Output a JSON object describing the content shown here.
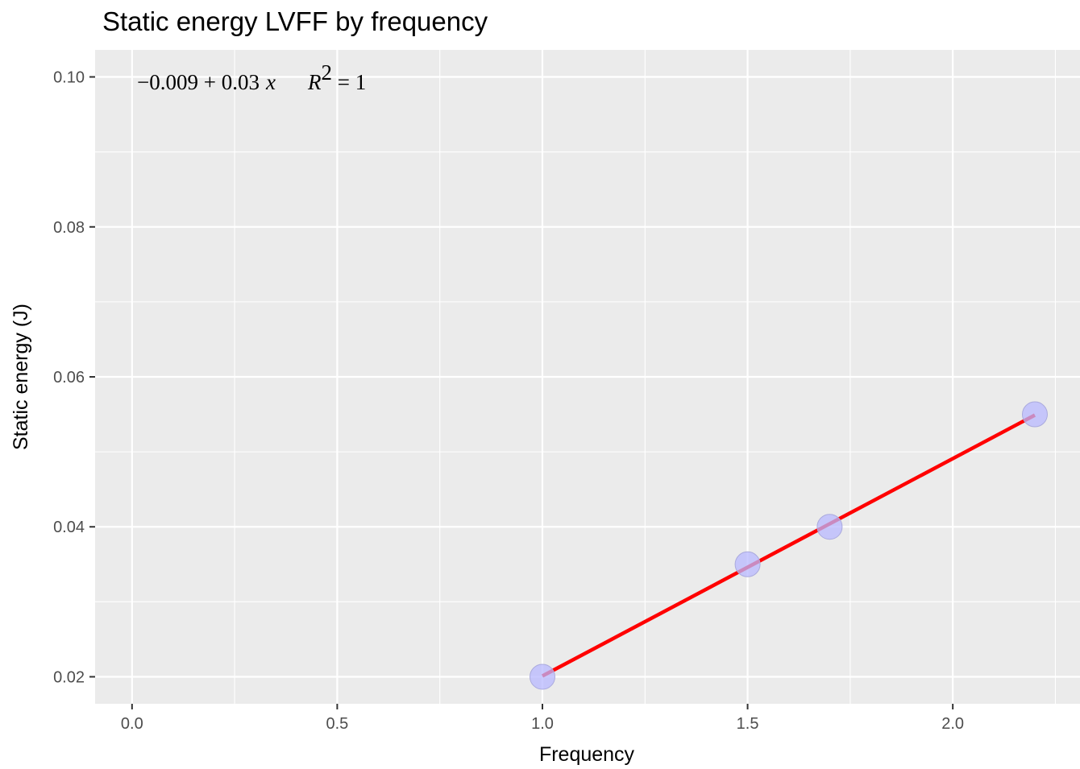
{
  "chart_data": {
    "type": "scatter",
    "title": "Static energy LVFF by frequency",
    "xlabel": "Frequency",
    "ylabel": "Static energy (J)",
    "xlim": [
      -0.09,
      2.31
    ],
    "ylim": [
      0.0164,
      0.1036
    ],
    "x_major_ticks": [
      0.0,
      0.5,
      1.0,
      1.5,
      2.0
    ],
    "x_tick_labels": [
      "0.0",
      "0.5",
      "1.0",
      "1.5",
      "2.0"
    ],
    "x_minor_ticks": [
      0.25,
      0.75,
      1.25,
      1.75,
      2.25
    ],
    "y_major_ticks": [
      0.02,
      0.04,
      0.06,
      0.08,
      0.1
    ],
    "y_tick_labels": [
      "0.02",
      "0.04",
      "0.06",
      "0.08",
      "0.10"
    ],
    "y_minor_ticks": [
      0.03,
      0.05,
      0.07,
      0.09
    ],
    "grid": true,
    "background": "#ebebeb",
    "points": [
      {
        "x": 1.0,
        "y": 0.02
      },
      {
        "x": 1.5,
        "y": 0.035
      },
      {
        "x": 1.7,
        "y": 0.04
      },
      {
        "x": 2.2,
        "y": 0.055
      }
    ],
    "point_color": "#b8b8ff",
    "fit_line": {
      "x": [
        1.0,
        2.2
      ],
      "y": [
        0.0201,
        0.0549
      ],
      "color": "#ff0000"
    },
    "annotation": {
      "intercept": "0.009",
      "slope": "0.03",
      "variable": "x",
      "r_label": "R",
      "r_exp": "2",
      "r_value": "1"
    }
  }
}
